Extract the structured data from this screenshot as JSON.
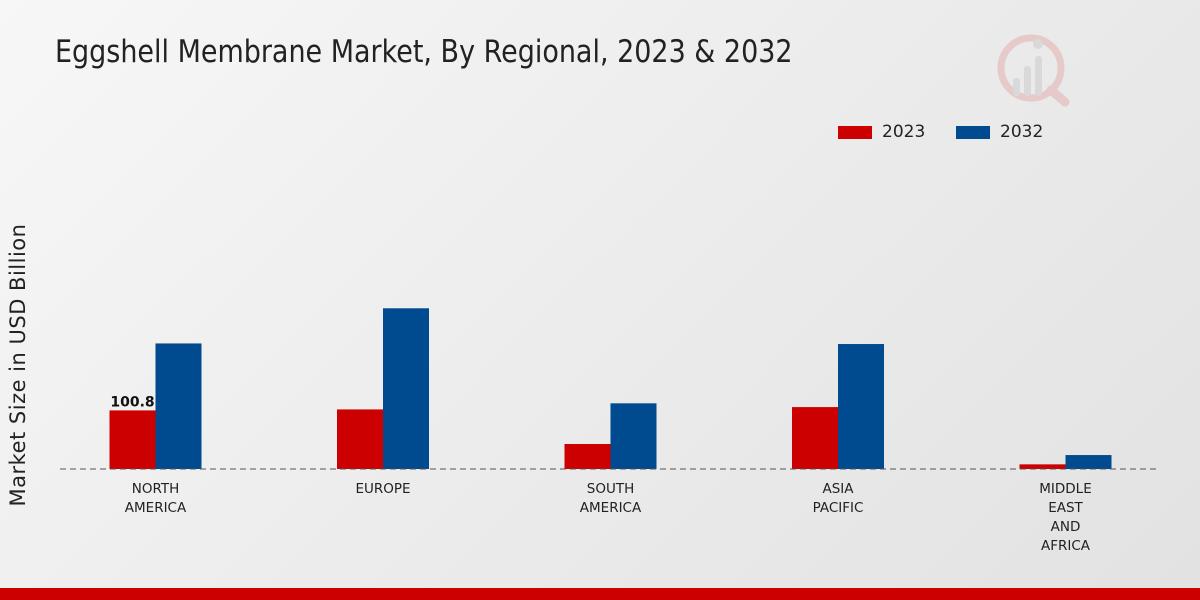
{
  "colors": {
    "series2023": "#cc0000",
    "series2032": "#004a8f",
    "footer": "#cc0000",
    "baseline": "#555555"
  },
  "chart_data": {
    "type": "bar",
    "title": "Eggshell Membrane Market, By Regional, 2023 & 2032",
    "xlabel": "",
    "ylabel": "Market Size in USD Billion",
    "categories": [
      [
        "NORTH",
        "AMERICA"
      ],
      [
        "EUROPE"
      ],
      [
        "SOUTH",
        "AMERICA"
      ],
      [
        "ASIA",
        "PACIFIC"
      ],
      [
        "MIDDLE",
        "EAST",
        "AND",
        "AFRICA"
      ]
    ],
    "series": [
      {
        "name": "2023",
        "color": "#cc0000",
        "values": [
          100.8,
          102.5,
          43.0,
          106.5,
          8.0
        ]
      },
      {
        "name": "2032",
        "color": "#004a8f",
        "values": [
          216.0,
          276.5,
          113.0,
          215.0,
          24.0
        ]
      }
    ],
    "data_labels": [
      {
        "series": 0,
        "index": 0,
        "text": "100.8"
      }
    ],
    "ylim": [
      0,
      320
    ],
    "grid": false,
    "legend_position": "top-right"
  }
}
